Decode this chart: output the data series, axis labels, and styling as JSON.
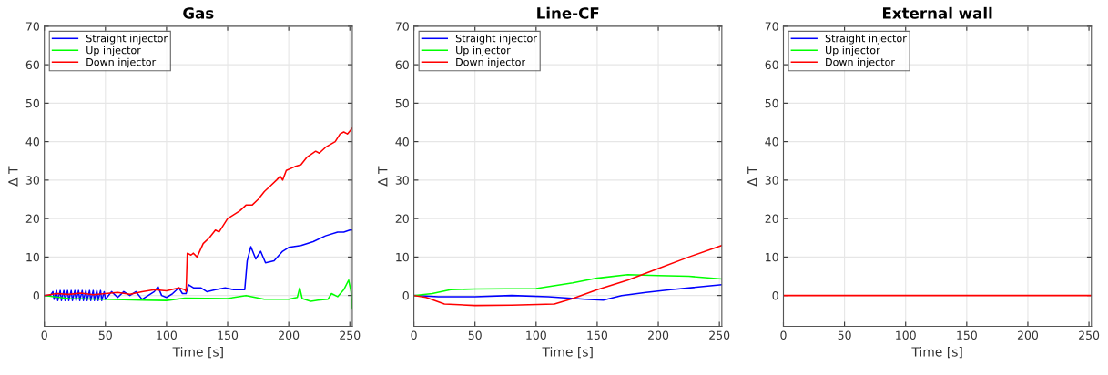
{
  "chart_data": [
    {
      "type": "line",
      "title": "Gas",
      "xlabel": "Time [s]",
      "ylabel": "Δ T",
      "xlim": [
        0,
        252
      ],
      "ylim": [
        -8,
        70
      ],
      "xticks": [
        0,
        50,
        100,
        150,
        200,
        250
      ],
      "yticks": [
        0,
        10,
        20,
        30,
        40,
        50,
        60,
        70
      ],
      "grid": true,
      "legend": "top left",
      "series": [
        {
          "name": "Straight injector",
          "color": "#0000ff",
          "x": [
            0,
            5,
            7,
            8,
            10,
            11,
            13,
            14,
            16,
            17,
            19,
            20,
            22,
            23,
            25,
            26,
            28,
            29,
            31,
            32,
            34,
            35,
            37,
            38,
            40,
            41,
            43,
            44,
            46,
            47,
            49,
            50,
            55,
            60,
            65,
            70,
            75,
            80,
            85,
            90,
            93,
            96,
            100,
            105,
            110,
            113,
            116,
            118,
            122,
            128,
            133,
            140,
            148,
            155,
            164,
            166,
            169,
            173,
            177,
            181,
            188,
            195,
            200,
            210,
            220,
            230,
            240,
            245,
            250,
            252
          ],
          "values": [
            0,
            0,
            1,
            -1,
            1.3,
            -1.3,
            1.3,
            -1.3,
            1.3,
            -1.3,
            1.3,
            -1.3,
            1.3,
            -1.3,
            1.3,
            -1.3,
            1.3,
            -1.3,
            1.3,
            -1.3,
            1.3,
            -1.3,
            1.3,
            -1.3,
            1.3,
            -1.3,
            1.3,
            -1.3,
            1.3,
            -1.3,
            1,
            -1,
            1,
            -0.5,
            1,
            0,
            1,
            -1,
            0,
            1,
            2.3,
            0,
            -0.5,
            0.5,
            2,
            0.5,
            0.5,
            2.8,
            2,
            2,
            1,
            1.5,
            2,
            1.5,
            1.5,
            9,
            12.7,
            9.5,
            11.5,
            8.5,
            9,
            11.5,
            12.5,
            13,
            14,
            15.5,
            16.5,
            16.5,
            17,
            17
          ]
        },
        {
          "name": "Up injector",
          "color": "#00ff00",
          "x": [
            0,
            20,
            50,
            80,
            100,
            115,
            150,
            165,
            180,
            200,
            207,
            209,
            211,
            218,
            224,
            232,
            235,
            240,
            245,
            249,
            251,
            252
          ],
          "values": [
            0,
            -0.8,
            -1,
            -1.2,
            -1.3,
            -0.7,
            -0.8,
            0,
            -1,
            -1,
            -0.5,
            2,
            -0.8,
            -1.5,
            -1.2,
            -1,
            0.5,
            -0.3,
            1.5,
            4,
            1,
            -3.5
          ]
        },
        {
          "name": "Down injector",
          "color": "#ff0000",
          "x": [
            0,
            10,
            20,
            30,
            40,
            50,
            60,
            70,
            80,
            90,
            100,
            110,
            115,
            116,
            117,
            120,
            122,
            125,
            130,
            135,
            140,
            143,
            150,
            160,
            165,
            170,
            175,
            180,
            185,
            190,
            193,
            195,
            198,
            205,
            210,
            215,
            222,
            225,
            230,
            238,
            242,
            245,
            248,
            252
          ],
          "values": [
            0,
            0.5,
            0.3,
            0.6,
            0.2,
            0.5,
            0.8,
            0.3,
            1,
            1.5,
            1.2,
            2,
            1.5,
            1,
            11,
            10.5,
            11,
            10,
            13.5,
            15,
            17,
            16.5,
            20,
            22,
            23.5,
            23.5,
            25,
            27,
            28.5,
            30,
            31,
            30,
            32.5,
            33.5,
            34,
            36,
            37.5,
            37,
            38.5,
            40,
            42,
            42.5,
            42,
            43.5
          ]
        }
      ]
    },
    {
      "type": "line",
      "title": "Line-CF",
      "xlabel": "Time [s]",
      "ylabel": "Δ T",
      "xlim": [
        0,
        252
      ],
      "ylim": [
        -8,
        70
      ],
      "xticks": [
        0,
        50,
        100,
        150,
        200,
        250
      ],
      "yticks": [
        0,
        10,
        20,
        30,
        40,
        50,
        60,
        70
      ],
      "grid": true,
      "legend": "top left",
      "series": [
        {
          "name": "Straight injector",
          "color": "#0000ff",
          "x": [
            0,
            20,
            50,
            80,
            110,
            140,
            155,
            170,
            190,
            210,
            252
          ],
          "values": [
            0,
            -0.3,
            -0.3,
            0,
            -0.3,
            -1,
            -1.2,
            0,
            0.8,
            1.5,
            2.8
          ]
        },
        {
          "name": "Up injector",
          "color": "#00ff00",
          "x": [
            0,
            15,
            30,
            50,
            100,
            130,
            150,
            175,
            200,
            225,
            252
          ],
          "values": [
            0,
            0.5,
            1.5,
            1.7,
            1.8,
            3.3,
            4.5,
            5.4,
            5.2,
            5,
            4.3
          ]
        },
        {
          "name": "Down injector",
          "color": "#ff0000",
          "x": [
            0,
            10,
            25,
            50,
            80,
            115,
            130,
            150,
            175,
            200,
            225,
            252
          ],
          "values": [
            0,
            -0.5,
            -2.2,
            -2.6,
            -2.5,
            -2.2,
            -0.8,
            1.5,
            4,
            7,
            10,
            13
          ]
        }
      ]
    },
    {
      "type": "line",
      "title": "External wall",
      "xlabel": "Time [s]",
      "ylabel": "Δ T",
      "xlim": [
        0,
        252
      ],
      "ylim": [
        -8,
        70
      ],
      "xticks": [
        0,
        50,
        100,
        150,
        200,
        250
      ],
      "yticks": [
        0,
        10,
        20,
        30,
        40,
        50,
        60,
        70
      ],
      "grid": true,
      "legend": "top left",
      "series": [
        {
          "name": "Straight injector",
          "color": "#0000ff"
        },
        {
          "name": "Up injector",
          "color": "#00ff00"
        },
        {
          "name": "Down injector",
          "color": "#ff0000",
          "x": [
            0,
            252
          ],
          "values": [
            0,
            0
          ]
        }
      ]
    }
  ]
}
